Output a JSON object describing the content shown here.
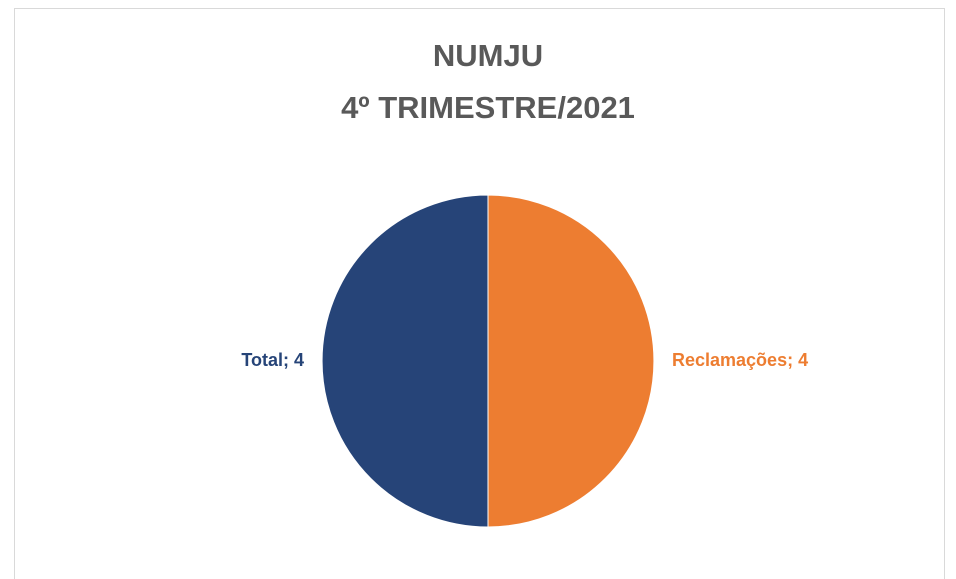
{
  "chart_data": {
    "type": "pie",
    "title": "NUMJU",
    "subtitle": "4º TRIMESTRE/2021",
    "categories": [
      "Reclamações",
      "Total"
    ],
    "values": [
      4,
      4
    ],
    "value_labels": [
      "Reclamações; 4",
      "Total; 4"
    ],
    "colors": [
      "#ED7D31",
      "#264478"
    ]
  }
}
